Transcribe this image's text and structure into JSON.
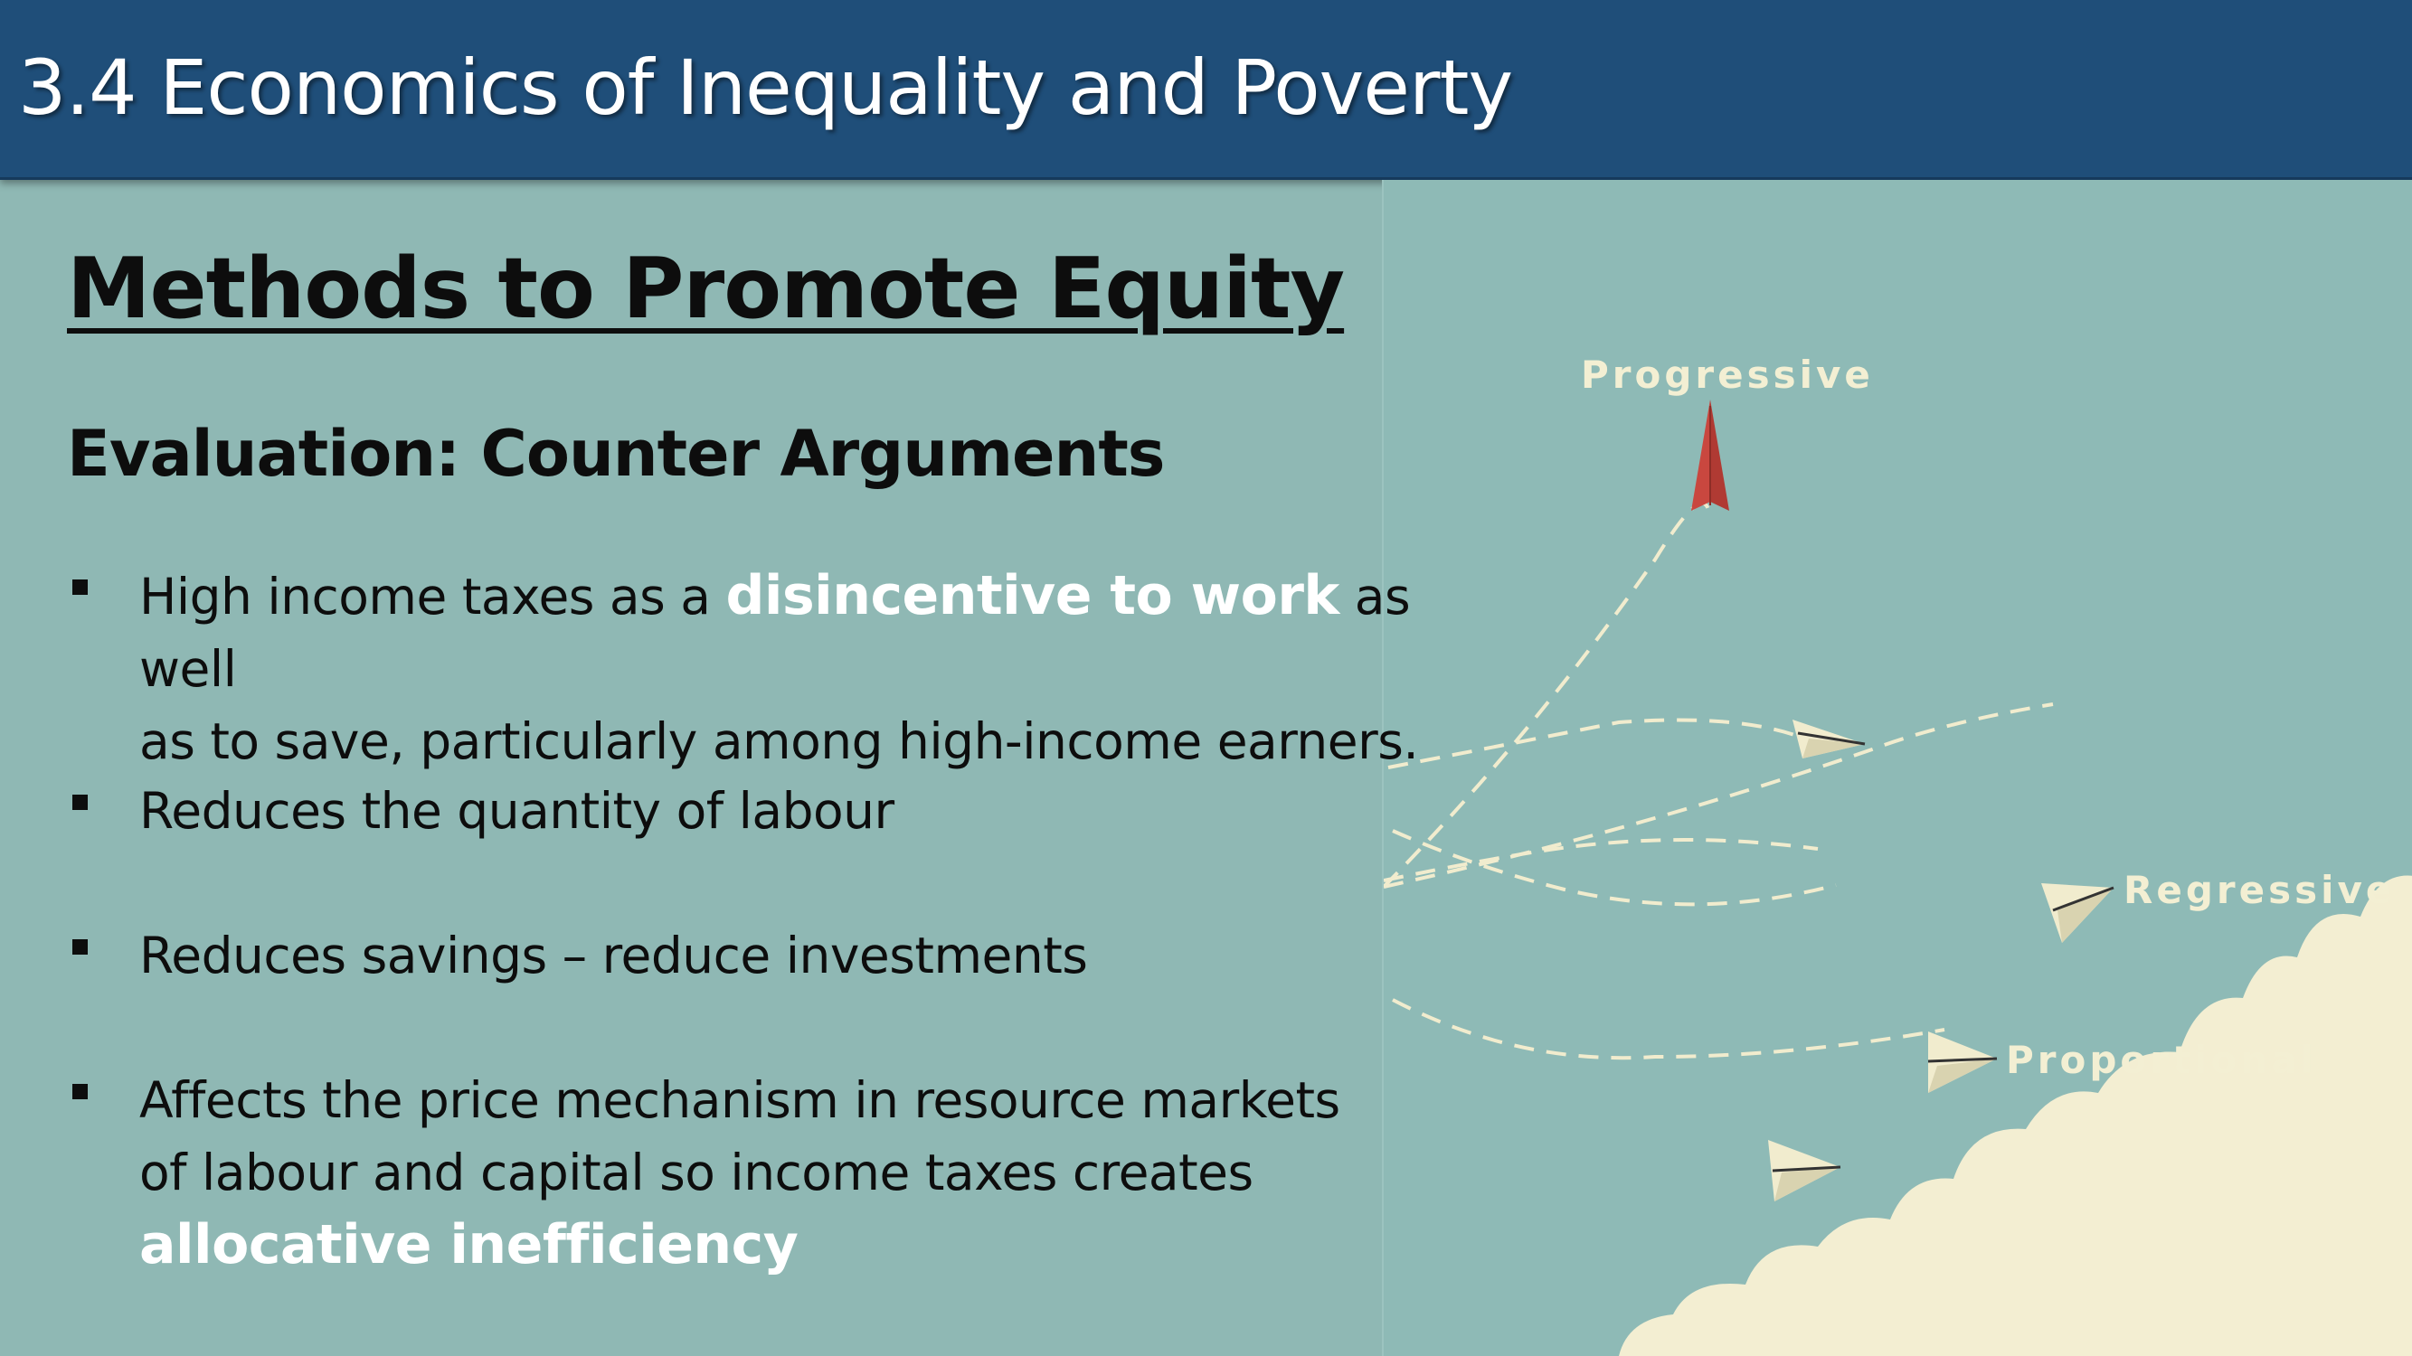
{
  "header": {
    "title": "3.4 Economics of Inequality and Poverty"
  },
  "slide": {
    "heading": "Methods to Promote Equity",
    "subheading": "Evaluation: Counter Arguments",
    "bullets": [
      {
        "line1_a": "High income taxes as a ",
        "line1_highlight": "disincentive to work",
        "line1_b": " as well",
        "line2": "as to save, particularly among high-income earners."
      },
      {
        "text": "Reduces the quantity of labour"
      },
      {
        "text": "Reduces savings – reduce investments"
      },
      {
        "line1": "Affects the price mechanism in resource markets",
        "line2": "of labour and capital so income taxes creates",
        "highlight": "allocative inefficiency"
      }
    ]
  },
  "illustration": {
    "labels": {
      "progressive": "Progressive",
      "regressive": "Regressive",
      "proportional": "Proportional"
    },
    "colors": {
      "red_plane": "#c9473f",
      "cream_plane": "#f1ecce",
      "cloud": "#f3eed2",
      "dash": "#f1ecce"
    }
  }
}
